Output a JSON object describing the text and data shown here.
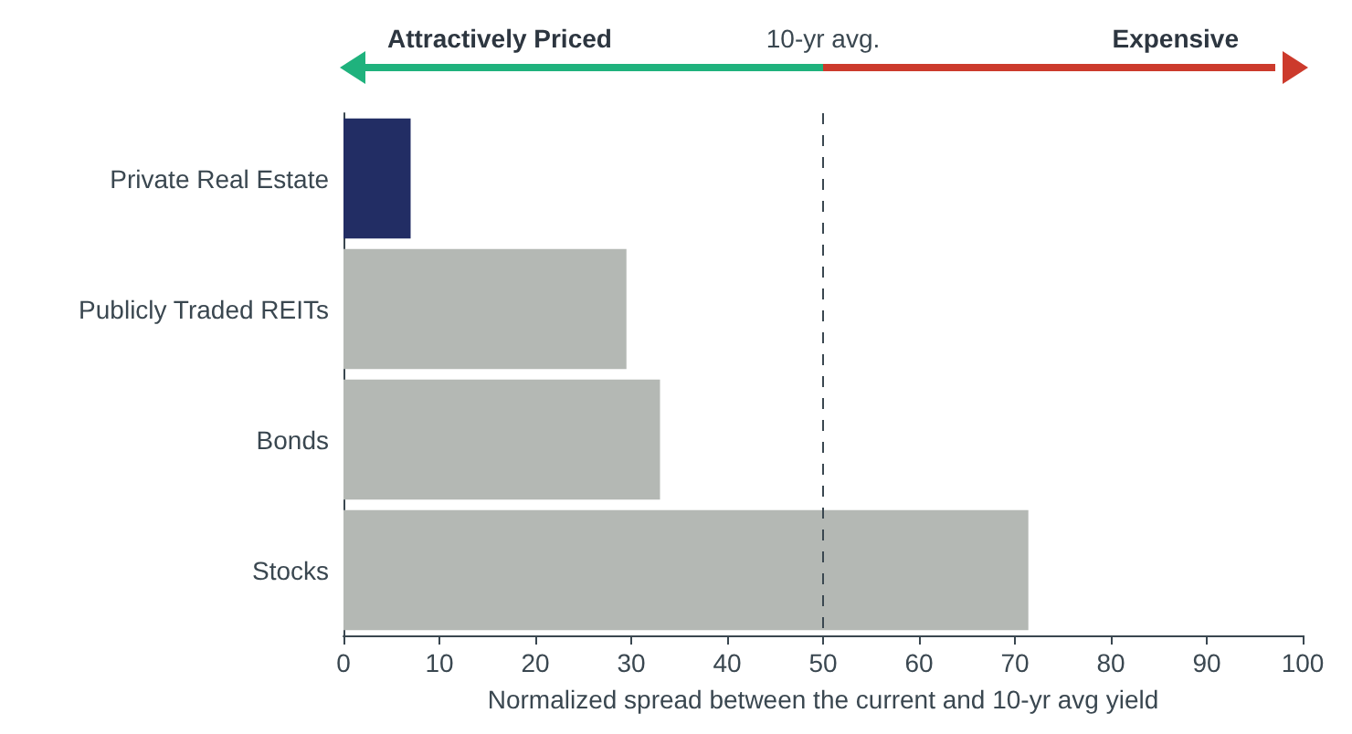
{
  "chart_data": {
    "type": "bar",
    "orientation": "horizontal",
    "categories": [
      "Private Real Estate",
      "Publicly Traded REITs",
      "Bonds",
      "Stocks"
    ],
    "values": [
      7,
      29.5,
      33,
      71.4
    ],
    "colors": [
      "#222d64",
      "#b4b8b4",
      "#b4b8b4",
      "#b4b8b4"
    ],
    "xlabel": "Normalized spread between the current and 10-yr avg yield",
    "xlim": [
      0,
      100
    ],
    "xticks": [
      0,
      10,
      20,
      30,
      40,
      50,
      60,
      70,
      80,
      90,
      100
    ],
    "ref_lines": [
      {
        "axis": "x",
        "value": 50,
        "label": "10-yr avg.",
        "color": "#3a4750",
        "line_style": "dashed"
      }
    ],
    "annotations": [
      "Attractively Priced",
      "Expensive"
    ],
    "grid": false
  }
}
